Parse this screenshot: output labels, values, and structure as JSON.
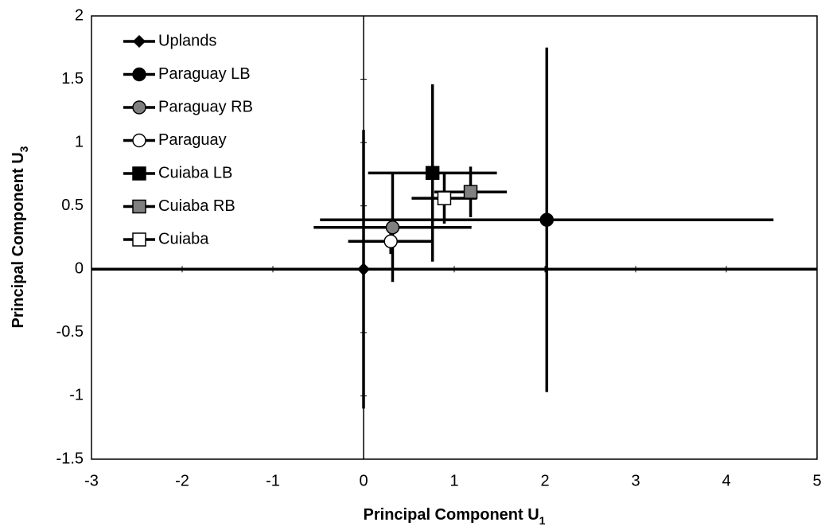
{
  "chart_data": {
    "type": "scatter",
    "xlabel": {
      "text": "Principal Component U",
      "sub": "1"
    },
    "ylabel": {
      "text": "Principal Component U",
      "sub": "3"
    },
    "xlim": [
      -3,
      5
    ],
    "xticks": [
      -3,
      -2,
      -1,
      0,
      1,
      2,
      3,
      4,
      5
    ],
    "ylim": [
      -1.5,
      2
    ],
    "yticks": [
      -1.5,
      -1,
      -0.5,
      0,
      0.5,
      1,
      1.5,
      2
    ],
    "legend": "upper-left",
    "series": [
      {
        "name": "Uplands",
        "color": "#000000",
        "marker": "diamond",
        "x": [
          0
        ],
        "y": [
          0
        ],
        "xerr": [
          0
        ],
        "yerr": [
          1.1
        ]
      },
      {
        "name": "Paraguay LB",
        "color": "#000000",
        "marker": "circle",
        "x": [
          2.02
        ],
        "y": [
          0.39
        ],
        "xerr": [
          2.5
        ],
        "yerr": [
          1.36
        ]
      },
      {
        "name": "Paraguay RB",
        "color": "#808080",
        "marker": "circle",
        "x": [
          0.32
        ],
        "y": [
          0.33
        ],
        "xerr": [
          0.87
        ],
        "yerr": [
          0.43
        ]
      },
      {
        "name": "Paraguay",
        "color": "#ffffff",
        "marker": "circle",
        "x": [
          0.3
        ],
        "y": [
          0.22
        ],
        "xerr": [
          0.47
        ],
        "yerr": [
          0.1
        ]
      },
      {
        "name": "Cuiaba LB",
        "color": "#000000",
        "marker": "square",
        "x": [
          0.76
        ],
        "y": [
          0.76
        ],
        "xerr": [
          0.71
        ],
        "yerr": [
          0.7
        ]
      },
      {
        "name": "Cuiaba RB",
        "color": "#808080",
        "marker": "square",
        "x": [
          1.18
        ],
        "y": [
          0.61
        ],
        "xerr": [
          0.4
        ],
        "yerr": [
          0.2
        ]
      },
      {
        "name": "Cuiaba",
        "color": "#ffffff",
        "marker": "square",
        "x": [
          0.89
        ],
        "y": [
          0.56
        ],
        "xerr": [
          0.36
        ],
        "yerr": [
          0.2
        ]
      }
    ]
  }
}
